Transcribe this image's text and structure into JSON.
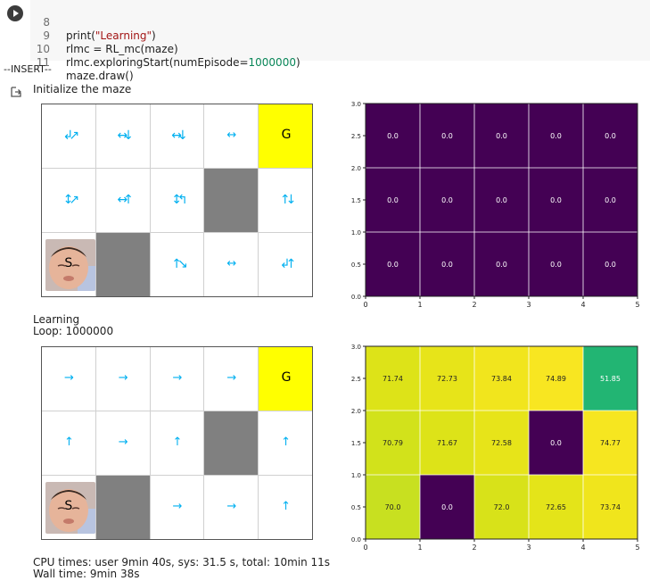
{
  "cell": {
    "lines": [
      {
        "no": "8",
        "code": "print(\"Learning\")"
      },
      {
        "no": "9",
        "code": "rlmc = RL_mc(maze)"
      },
      {
        "no": "10",
        "code": "rlmc.exploringStart(numEpisode=1000000)"
      },
      {
        "no": "11",
        "code": "maze.draw()"
      }
    ],
    "mode": "--INSERT--"
  },
  "output": {
    "text1": "Initialize the maze",
    "text2": "Learning",
    "text3": "Loop: 1000000",
    "text4": "CPU times: user 9min 40s, sys: 31.5 s, total: 10min 11s",
    "text5": "Wall time: 9min 38s"
  },
  "maze1": {
    "rows": [
      [
        {
          "arrows": "↲↗"
        },
        {
          "arrows": "↔↓"
        },
        {
          "arrows": "↔↓"
        },
        {
          "arrows": "↔"
        },
        {
          "label": "G",
          "goal": true
        }
      ],
      [
        {
          "arrows": "↕↗"
        },
        {
          "arrows": "↔↑"
        },
        {
          "arrows": "↕↰"
        },
        {
          "wall": true
        },
        {
          "arrows": "↑↓"
        }
      ],
      [
        {
          "label": "S",
          "photo": true
        },
        {
          "wall": true
        },
        {
          "arrows": "↑↘"
        },
        {
          "arrows": "↔"
        },
        {
          "arrows": "↲↑"
        }
      ]
    ]
  },
  "maze2": {
    "rows": [
      [
        {
          "arrows": "→"
        },
        {
          "arrows": "→"
        },
        {
          "arrows": "→"
        },
        {
          "arrows": "→"
        },
        {
          "label": "G",
          "goal": true
        }
      ],
      [
        {
          "arrows": "↑"
        },
        {
          "arrows": "→"
        },
        {
          "arrows": "↑"
        },
        {
          "wall": true
        },
        {
          "arrows": "↑"
        }
      ],
      [
        {
          "label": "S",
          "photo": true
        },
        {
          "wall": true
        },
        {
          "arrows": "→"
        },
        {
          "arrows": "→"
        },
        {
          "arrows": "↑"
        }
      ]
    ]
  },
  "chart_data": [
    {
      "type": "heatmap",
      "x_ticks": [
        "0",
        "1",
        "2",
        "3",
        "4",
        "5"
      ],
      "y_ticks": [
        "0.0",
        "0.5",
        "1.0",
        "1.5",
        "2.0",
        "2.5",
        "3.0"
      ],
      "xlim": [
        0,
        5
      ],
      "ylim": [
        0,
        3
      ],
      "rows": [
        [
          "0.0",
          "0.0",
          "0.0",
          "0.0",
          "0.0"
        ],
        [
          "0.0",
          "0.0",
          "0.0",
          "0.0",
          "0.0"
        ],
        [
          "0.0",
          "0.0",
          "0.0",
          "0.0",
          "0.0"
        ]
      ],
      "colors": [
        [
          "#440154",
          "#440154",
          "#440154",
          "#440154",
          "#440154"
        ],
        [
          "#440154",
          "#440154",
          "#440154",
          "#440154",
          "#440154"
        ],
        [
          "#440154",
          "#440154",
          "#440154",
          "#440154",
          "#440154"
        ]
      ],
      "grid": true
    },
    {
      "type": "heatmap",
      "x_ticks": [
        "0",
        "1",
        "2",
        "3",
        "4",
        "5"
      ],
      "y_ticks": [
        "0.0",
        "0.5",
        "1.0",
        "1.5",
        "2.0",
        "2.5",
        "3.0"
      ],
      "xlim": [
        0,
        5
      ],
      "ylim": [
        0,
        3
      ],
      "rows": [
        [
          "71.74",
          "72.73",
          "73.84",
          "74.89",
          "51.85"
        ],
        [
          "70.79",
          "71.67",
          "72.58",
          "0.0",
          "74.77"
        ],
        [
          "70.0",
          "0.0",
          "72.0",
          "72.65",
          "73.74"
        ]
      ],
      "colors": [
        [
          "#dde318",
          "#e7e419",
          "#f1e51d",
          "#f8e621",
          "#22b573"
        ],
        [
          "#d2e21b",
          "#dde318",
          "#e7e419",
          "#440154",
          "#f6e620"
        ],
        [
          "#c8e020",
          "#440154",
          "#d8e219",
          "#e4e419",
          "#f0e51c"
        ]
      ],
      "grid": true
    }
  ]
}
